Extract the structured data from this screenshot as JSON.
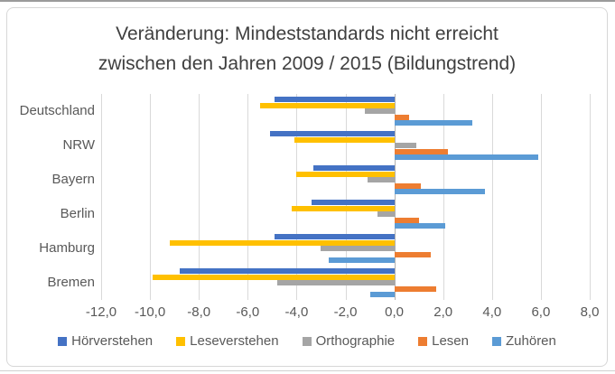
{
  "chart": {
    "title_line1": "Veränderung: Mindeststandards nicht erreicht",
    "title_line2": "zwischen den Jahren 2009 / 2015 (Bildungstrend)"
  },
  "chart_data": {
    "type": "bar",
    "orientation": "horizontal",
    "title": "Veränderung: Mindeststandards nicht erreicht zwischen den Jahren 2009 / 2015 (Bildungstrend)",
    "categories": [
      "Deutschland",
      "NRW",
      "Bayern",
      "Berlin",
      "Hamburg",
      "Bremen"
    ],
    "series": [
      {
        "name": "Hörverstehen",
        "color": "#4472C4",
        "values": [
          -4.9,
          -5.1,
          -3.3,
          -3.4,
          -4.9,
          -8.8
        ]
      },
      {
        "name": "Leseverstehen",
        "color": "#FFC000",
        "values": [
          -5.5,
          -4.1,
          -4.0,
          -4.2,
          -9.2,
          -9.9
        ]
      },
      {
        "name": "Orthographie",
        "color": "#A5A5A5",
        "values": [
          -1.2,
          0.9,
          -1.1,
          -0.7,
          -3.0,
          -4.8
        ]
      },
      {
        "name": "Lesen",
        "color": "#ED7D31",
        "values": [
          0.6,
          2.2,
          1.1,
          1.0,
          1.5,
          1.7
        ]
      },
      {
        "name": "Zuhören",
        "color": "#5B9BD5",
        "values": [
          3.2,
          5.9,
          3.7,
          2.1,
          -2.7,
          -1.0
        ]
      }
    ],
    "xlim": [
      -12,
      8
    ],
    "x_tick_step": 2,
    "x_tick_labels": [
      "-12,0",
      "-10,0",
      "-8,0",
      "-6,0",
      "-4,0",
      "-2,0",
      "0,0",
      "2,0",
      "4,0",
      "6,0",
      "8,0"
    ],
    "grid": true,
    "legend_position": "bottom"
  },
  "colors": {
    "background": "#ffffff",
    "gridline": "#d9d9d9",
    "zero_axis_line": "#b0b0b0",
    "chart_border": "#d7d7d7",
    "title_text": "#3f3f3f",
    "axis_text": "#595959"
  }
}
